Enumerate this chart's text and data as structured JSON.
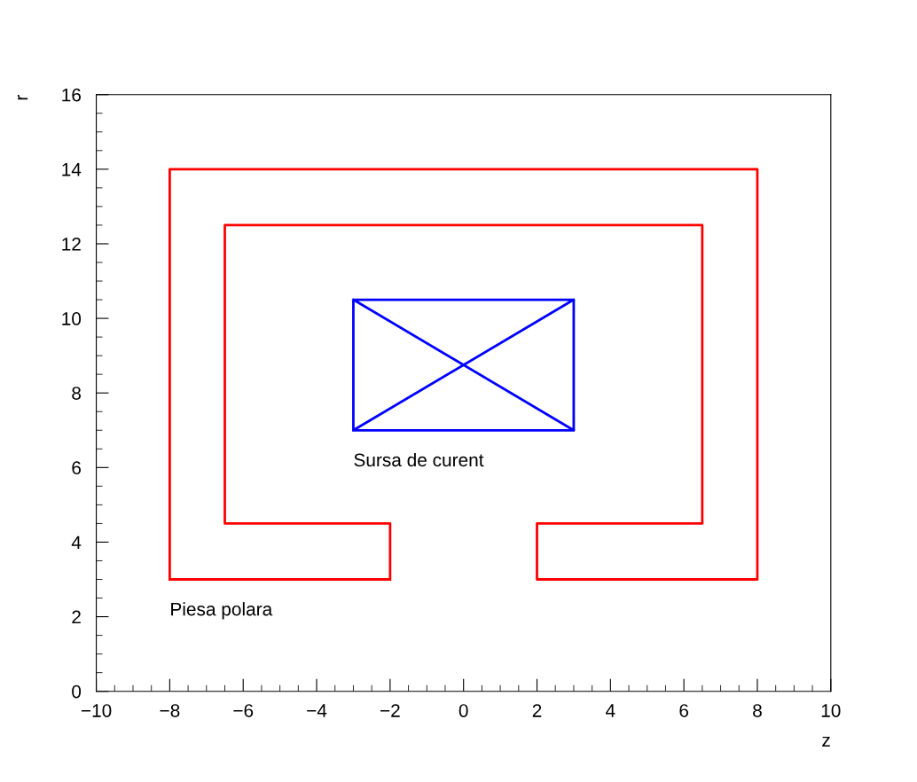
{
  "chart_data": {
    "type": "line",
    "xlabel": "z",
    "ylabel": "r",
    "series": [
      {
        "color": "#ff0000",
        "x": [
          -8,
          -8,
          8,
          8,
          2,
          2,
          6.5,
          6.5,
          -6.5,
          -6.5,
          -2,
          -2,
          null,
          -2,
          -8
        ],
        "values": [
          3,
          14,
          14,
          3,
          3,
          4.5,
          4.5,
          12.5,
          12.5,
          4.5,
          4.5,
          3,
          null,
          3,
          3
        ]
      },
      {
        "color": "#0000ff",
        "x": [
          -3,
          3,
          3,
          -3,
          -3,
          3,
          null,
          -3,
          3
        ],
        "values": [
          7,
          7,
          10.5,
          10.5,
          7,
          10.5,
          null,
          10.5,
          7
        ]
      }
    ],
    "annotations": [
      "Sursa de curent",
      "Piesa polara"
    ],
    "xlim": [
      -10,
      10
    ],
    "xticks": [
      {
        "value": -10,
        "label": "−10"
      },
      {
        "value": -8,
        "label": "−8"
      },
      {
        "value": -6,
        "label": "−6"
      },
      {
        "value": -4,
        "label": "−4"
      },
      {
        "value": -2,
        "label": "−2"
      },
      0,
      2,
      4,
      6,
      8,
      10
    ],
    "ylim": [
      0,
      16
    ],
    "yticks": [
      0,
      2,
      4,
      6,
      8,
      10,
      12,
      14,
      16
    ],
    "grid": false,
    "marker": "none",
    "line_style": "solid"
  }
}
